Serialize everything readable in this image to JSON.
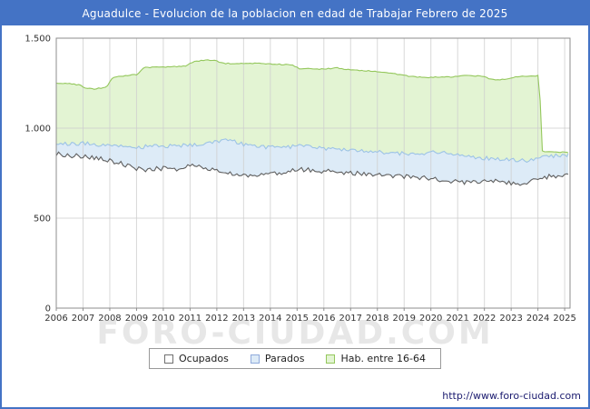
{
  "title": "Aguadulce - Evolucion de la poblacion en edad de Trabajar Febrero de 2025",
  "watermark": "FORO-CIUDAD.COM",
  "footer_url": "http://www.foro-ciudad.com",
  "colors": {
    "titlebar_bg": "#4473C5",
    "titlebar_text": "#FFFFFF",
    "frame_border": "#4473C5",
    "grid": "#CFCFCF",
    "plot_border": "#8C8C8C",
    "axis_text": "#333333",
    "footer_text": "#1B1B6F",
    "watermark_text": "#B9B9B9"
  },
  "legend": [
    {
      "label": "Ocupados",
      "swatch_fill": "#FFFFFF",
      "swatch_border": "#707070"
    },
    {
      "label": "Parados",
      "swatch_fill": "#DDEBF7",
      "swatch_border": "#8FAADC"
    },
    {
      "label": "Hab. entre 16-64",
      "swatch_fill": "#E3F4D3",
      "swatch_border": "#94C75C"
    }
  ],
  "chart_data": {
    "type": "area",
    "title": "Aguadulce - Evolucion de la poblacion en edad de Trabajar Febrero de 2025",
    "xlabel": "",
    "ylabel": "",
    "xlim": [
      2006,
      2025.2
    ],
    "ylim": [
      0,
      1500
    ],
    "grid": true,
    "legend_position": "bottom",
    "x_axis_years": [
      2006,
      2007,
      2008,
      2009,
      2010,
      2011,
      2012,
      2013,
      2014,
      2015,
      2016,
      2017,
      2018,
      2019,
      2020,
      2021,
      2022,
      2023,
      2024,
      2025
    ],
    "yticks": [
      {
        "v": 0,
        "label": "0"
      },
      {
        "v": 500,
        "label": "500"
      },
      {
        "v": 1000,
        "label": "1.000"
      },
      {
        "v": 1500,
        "label": "1.500"
      }
    ],
    "series": [
      {
        "name": "Hab. entre 16-64",
        "line": "#94C75C",
        "fill": "#E3F4D3",
        "noise": 3,
        "points": [
          [
            2006.0,
            1252
          ],
          [
            2006.4,
            1248
          ],
          [
            2006.9,
            1240
          ],
          [
            2007.1,
            1222
          ],
          [
            2007.4,
            1216
          ],
          [
            2007.9,
            1230
          ],
          [
            2008.1,
            1282
          ],
          [
            2008.6,
            1292
          ],
          [
            2009.0,
            1298
          ],
          [
            2009.3,
            1338
          ],
          [
            2010.0,
            1338
          ],
          [
            2010.8,
            1344
          ],
          [
            2011.1,
            1368
          ],
          [
            2011.5,
            1378
          ],
          [
            2012.0,
            1375
          ],
          [
            2012.2,
            1360
          ],
          [
            2013.0,
            1358
          ],
          [
            2013.5,
            1362
          ],
          [
            2014.0,
            1356
          ],
          [
            2014.8,
            1352
          ],
          [
            2015.1,
            1330
          ],
          [
            2016.0,
            1328
          ],
          [
            2016.5,
            1335
          ],
          [
            2017.0,
            1322
          ],
          [
            2017.8,
            1318
          ],
          [
            2018.3,
            1310
          ],
          [
            2018.8,
            1298
          ],
          [
            2019.3,
            1286
          ],
          [
            2020.0,
            1282
          ],
          [
            2020.8,
            1284
          ],
          [
            2021.2,
            1292
          ],
          [
            2021.9,
            1288
          ],
          [
            2022.3,
            1270
          ],
          [
            2022.9,
            1272
          ],
          [
            2023.2,
            1286
          ],
          [
            2023.9,
            1290
          ],
          [
            2024.05,
            1292
          ],
          [
            2024.15,
            872
          ],
          [
            2024.6,
            868
          ],
          [
            2025.13,
            865
          ]
        ]
      },
      {
        "name": "Parados",
        "line": "#9DC3E6",
        "fill": "#DDEBF7",
        "noise": 11,
        "points": [
          [
            2006.0,
            918
          ],
          [
            2006.5,
            912
          ],
          [
            2007.0,
            916
          ],
          [
            2007.5,
            905
          ],
          [
            2008.0,
            902
          ],
          [
            2008.5,
            898
          ],
          [
            2009.0,
            892
          ],
          [
            2009.5,
            900
          ],
          [
            2010.0,
            903
          ],
          [
            2010.5,
            898
          ],
          [
            2011.0,
            908
          ],
          [
            2011.5,
            912
          ],
          [
            2012.0,
            928
          ],
          [
            2012.4,
            940
          ],
          [
            2013.0,
            908
          ],
          [
            2013.5,
            900
          ],
          [
            2014.0,
            893
          ],
          [
            2014.5,
            890
          ],
          [
            2015.0,
            902
          ],
          [
            2015.5,
            898
          ],
          [
            2016.0,
            888
          ],
          [
            2016.5,
            884
          ],
          [
            2017.0,
            878
          ],
          [
            2017.5,
            874
          ],
          [
            2018.0,
            868
          ],
          [
            2018.5,
            864
          ],
          [
            2019.0,
            858
          ],
          [
            2019.5,
            854
          ],
          [
            2020.0,
            866
          ],
          [
            2020.5,
            862
          ],
          [
            2021.0,
            848
          ],
          [
            2021.5,
            842
          ],
          [
            2022.0,
            834
          ],
          [
            2022.5,
            828
          ],
          [
            2023.0,
            822
          ],
          [
            2023.5,
            818
          ],
          [
            2024.0,
            838
          ],
          [
            2024.5,
            846
          ],
          [
            2025.13,
            852
          ]
        ]
      },
      {
        "name": "Ocupados",
        "line": "#606060",
        "fill": "#FFFFFF",
        "noise": 13,
        "points": [
          [
            2006.0,
            858
          ],
          [
            2006.5,
            848
          ],
          [
            2007.0,
            842
          ],
          [
            2007.5,
            836
          ],
          [
            2008.0,
            820
          ],
          [
            2008.5,
            800
          ],
          [
            2009.0,
            775
          ],
          [
            2009.5,
            768
          ],
          [
            2010.0,
            778
          ],
          [
            2010.5,
            772
          ],
          [
            2011.0,
            788
          ],
          [
            2011.5,
            782
          ],
          [
            2012.0,
            764
          ],
          [
            2012.5,
            752
          ],
          [
            2013.0,
            742
          ],
          [
            2013.5,
            738
          ],
          [
            2014.0,
            752
          ],
          [
            2014.5,
            748
          ],
          [
            2015.0,
            772
          ],
          [
            2015.5,
            766
          ],
          [
            2016.0,
            762
          ],
          [
            2016.5,
            756
          ],
          [
            2017.0,
            752
          ],
          [
            2017.5,
            746
          ],
          [
            2018.0,
            742
          ],
          [
            2018.5,
            738
          ],
          [
            2019.0,
            732
          ],
          [
            2019.5,
            728
          ],
          [
            2020.0,
            718
          ],
          [
            2020.5,
            712
          ],
          [
            2021.0,
            702
          ],
          [
            2021.5,
            698
          ],
          [
            2022.0,
            712
          ],
          [
            2022.5,
            706
          ],
          [
            2023.0,
            692
          ],
          [
            2023.5,
            688
          ],
          [
            2024.0,
            722
          ],
          [
            2024.5,
            732
          ],
          [
            2025.13,
            742
          ]
        ]
      }
    ]
  }
}
